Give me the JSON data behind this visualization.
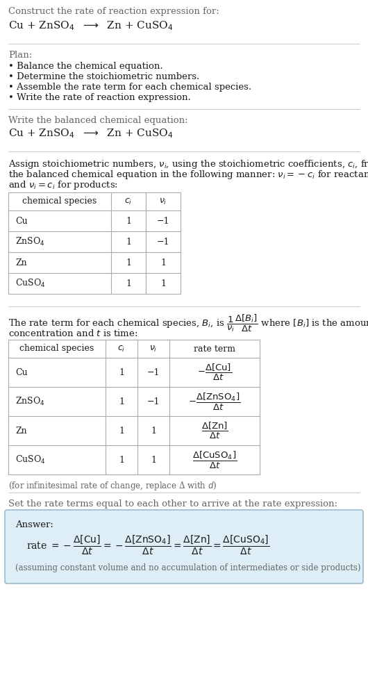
{
  "bg_color": "#ffffff",
  "text_color": "#1a1a1a",
  "gray_text": "#666666",
  "section1_title": "Construct the rate of reaction expression for:",
  "section1_eq": "Cu + ZnSO$_4$  $\\longrightarrow$  Zn + CuSO$_4$",
  "section2_title": "Plan:",
  "section2_bullets": [
    "• Balance the chemical equation.",
    "• Determine the stoichiometric numbers.",
    "• Assemble the rate term for each chemical species.",
    "• Write the rate of reaction expression."
  ],
  "section3_title": "Write the balanced chemical equation:",
  "section3_eq": "Cu + ZnSO$_4$  $\\longrightarrow$  Zn + CuSO$_4$",
  "section4_intro": "Assign stoichiometric numbers, $\\nu_i$, using the stoichiometric coefficients, $c_i$, from the balanced chemical equation in the following manner: $\\nu_i = -c_i$ for reactants and $\\nu_i = c_i$ for products:",
  "table1_headers": [
    "chemical species",
    "$c_i$",
    "$\\nu_i$"
  ],
  "table1_rows": [
    [
      "Cu",
      "1",
      "−1"
    ],
    [
      "ZnSO$_4$",
      "1",
      "−1"
    ],
    [
      "Zn",
      "1",
      "1"
    ],
    [
      "CuSO$_4$",
      "1",
      "1"
    ]
  ],
  "section5_intro_line1": "The rate term for each chemical species, $B_i$, is $\\dfrac{1}{\\nu_i}\\dfrac{\\Delta[B_i]}{\\Delta t}$ where $[B_i]$ is the amount",
  "section5_intro_line2": "concentration and $t$ is time:",
  "table2_headers": [
    "chemical species",
    "$c_i$",
    "$\\nu_i$",
    "rate term"
  ],
  "table2_rows": [
    [
      "Cu",
      "1",
      "−1",
      "$-\\dfrac{\\Delta[\\mathrm{Cu}]}{\\Delta t}$"
    ],
    [
      "ZnSO$_4$",
      "1",
      "−1",
      "$-\\dfrac{\\Delta[\\mathrm{ZnSO_4}]}{\\Delta t}$"
    ],
    [
      "Zn",
      "1",
      "1",
      "$\\dfrac{\\Delta[\\mathrm{Zn}]}{\\Delta t}$"
    ],
    [
      "CuSO$_4$",
      "1",
      "1",
      "$\\dfrac{\\Delta[\\mathrm{CuSO_4}]}{\\Delta t}$"
    ]
  ],
  "infinitesimal_note": "(for infinitesimal rate of change, replace Δ with $d$)",
  "section6_title": "Set the rate terms equal to each other to arrive at the rate expression:",
  "answer_box_color": "#ddeef6",
  "answer_border_color": "#99bbcc",
  "answer_label": "Answer:",
  "answer_eq": "rate $= -\\dfrac{\\Delta[\\mathrm{Cu}]}{\\Delta t} = -\\dfrac{\\Delta[\\mathrm{ZnSO_4}]}{\\Delta t} = \\dfrac{\\Delta[\\mathrm{Zn}]}{\\Delta t} = \\dfrac{\\Delta[\\mathrm{CuSO_4}]}{\\Delta t}$",
  "answer_note": "(assuming constant volume and no accumulation of intermediates or side products)",
  "font_size_body": 9.5,
  "font_size_eq": 11,
  "font_size_small": 9,
  "font_size_note": 8.5,
  "line_color": "#cccccc",
  "table_line_color": "#aaaaaa"
}
